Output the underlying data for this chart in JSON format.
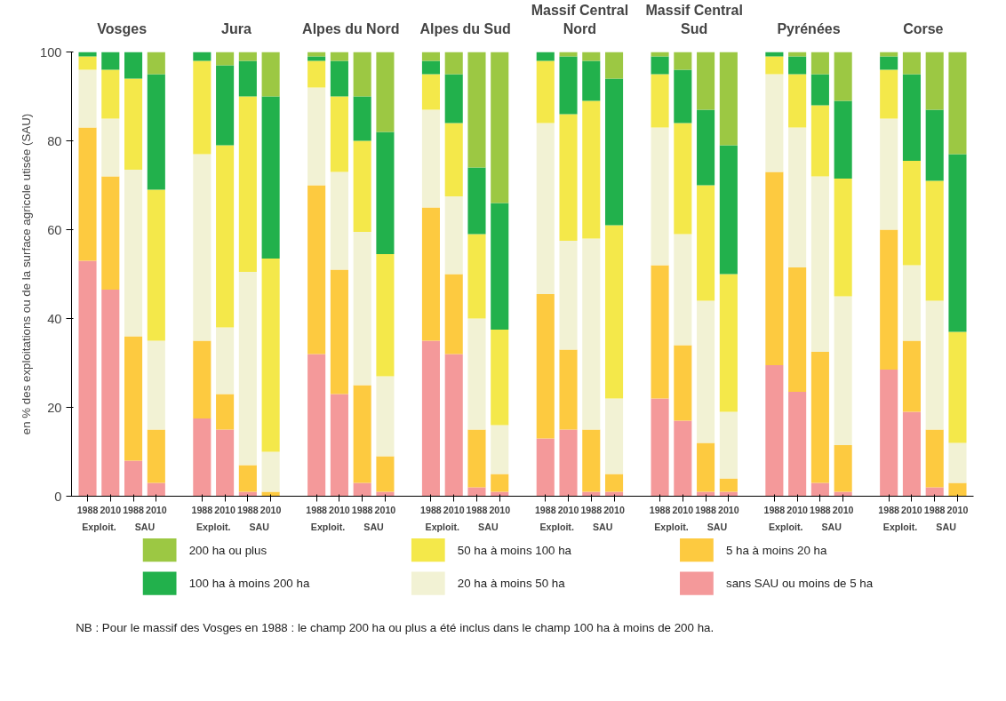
{
  "chart_data": {
    "type": "bar",
    "stacked": true,
    "ylabel": "en % des exploitations ou de la surface agricole utisée (SAU)",
    "categories": [
      "1988",
      "2010",
      "1988",
      "2010",
      "1988",
      "2010",
      "1988",
      "2010",
      "1988",
      "2010",
      "1988",
      "2010",
      "1988",
      "2010",
      "1988",
      "2010",
      "1988",
      "2010",
      "1988",
      "2010",
      "1988",
      "2010",
      "1988",
      "2010",
      "1988",
      "2010",
      "1988",
      "2010",
      "1988",
      "2010",
      "1988",
      "2010"
    ],
    "ylim": [
      0,
      100
    ],
    "yticks": [
      0,
      20,
      40,
      60,
      80,
      100
    ],
    "grid": false,
    "legend": "bottom",
    "annotations": [
      "Vosges",
      "Jura",
      "Alpes du Nord",
      "Alpes du Sud",
      "Massif Central Nord",
      "Massif Central Sud",
      "Pyrénées",
      "Corse",
      "Exploit.",
      "SAU",
      "Exploit.",
      "SAU",
      "Exploit.",
      "SAU",
      "Exploit.",
      "SAU",
      "Exploit.",
      "SAU",
      "Exploit.",
      "SAU",
      "Exploit.",
      "SAU",
      "Exploit.",
      "SAU",
      "NB : Pour le massif des Vosges en 1988 : le champ 200 ha ou plus  a été inclus dans le champ 100 ha à moins de 200 ha."
    ],
    "series": [
      {
        "name": "sans SAU ou moins de  5 ha",
        "color": "#f4999a",
        "values": [
          53,
          46.5,
          8,
          3,
          17.5,
          15,
          1,
          0,
          32,
          23,
          3,
          1,
          35,
          32,
          2,
          1,
          13,
          15,
          1,
          1,
          22,
          17,
          1,
          1,
          29.5,
          23.5,
          3,
          1,
          28.5,
          19,
          2,
          0
        ]
      },
      {
        "name": "5 ha à moins 20 ha",
        "color": "#fdca40",
        "values": [
          30,
          25.5,
          28,
          12,
          17.5,
          8,
          6,
          1,
          38,
          28,
          22,
          8,
          30,
          18,
          13,
          4,
          32.5,
          18,
          14,
          4,
          30,
          17,
          11,
          3,
          43.5,
          28,
          29.5,
          10.5,
          31.5,
          16,
          13,
          3
        ]
      },
      {
        "name": "20 ha à moins 50 ha",
        "color": "#f2f2d4",
        "values": [
          13,
          13,
          37.5,
          20,
          42,
          15,
          43.5,
          9,
          22,
          22,
          34.5,
          18,
          22,
          17.5,
          25,
          11,
          38.5,
          24.5,
          43,
          17,
          31,
          25,
          32,
          15,
          22,
          31.5,
          39.5,
          33.5,
          25,
          17,
          29,
          9
        ]
      },
      {
        "name": "50 ha à moins 100 ha",
        "color": "#f4e84a",
        "values": [
          3,
          11,
          20.5,
          34,
          21,
          41,
          39.5,
          43.5,
          6,
          17,
          20.5,
          27.5,
          8,
          16.5,
          19,
          21.5,
          14,
          28.5,
          31,
          39,
          12,
          25,
          26,
          31,
          4,
          12,
          16,
          26.5,
          11,
          23.5,
          27,
          25
        ]
      },
      {
        "name": "100 ha à moins 200 ha",
        "color": "#22b14c",
        "values": [
          1,
          4,
          6,
          26,
          2,
          18,
          8,
          36.5,
          1,
          8,
          10,
          27.5,
          3,
          11,
          15,
          28.5,
          2,
          13,
          9,
          33,
          4,
          12,
          17,
          29,
          1,
          4,
          7,
          17.5,
          3,
          19.5,
          16,
          40
        ]
      },
      {
        "name": "200 ha ou plus",
        "color": "#9cc843",
        "values": [
          0,
          0,
          0,
          5,
          0,
          3,
          2,
          10,
          1,
          2,
          10,
          18,
          2,
          5,
          26,
          34,
          0,
          1,
          2,
          6,
          1,
          4,
          13,
          21,
          0,
          1,
          5,
          11,
          1,
          5,
          13,
          23
        ]
      }
    ]
  }
}
